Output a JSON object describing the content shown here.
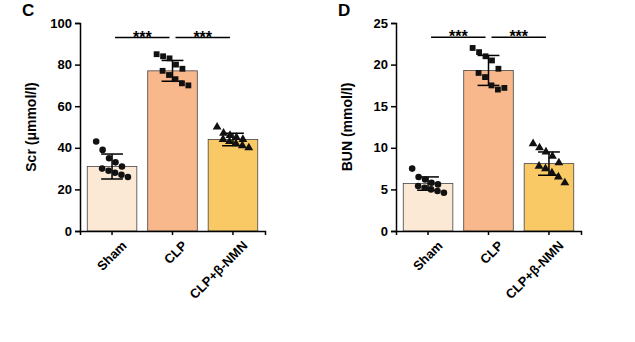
{
  "chart_data": [
    {
      "type": "bar",
      "title": "C",
      "y_label": "Scr (μmmol/l)",
      "categories": [
        "Sham",
        "CLP",
        "CLP+β-NMN"
      ],
      "values": [
        31,
        77,
        44
      ],
      "errors": [
        6,
        5,
        3
      ],
      "points": [
        [
          43,
          39,
          35,
          33,
          31,
          30,
          29,
          28,
          27,
          26
        ],
        [
          85,
          84,
          83,
          80,
          78,
          77,
          75,
          73,
          71,
          70
        ],
        [
          50,
          47,
          46,
          45,
          44,
          44,
          43,
          42,
          41,
          40
        ]
      ],
      "colors": [
        "#fbe9d6",
        "#f9b88c",
        "#f8c964"
      ],
      "marker": [
        "circle",
        "square",
        "triangle"
      ],
      "ylim": [
        0,
        100
      ],
      "yticks": [
        0,
        20,
        40,
        60,
        80,
        100
      ],
      "grid": false,
      "annotations": [
        {
          "text": "***",
          "from": 0,
          "to": 1,
          "y": 93
        },
        {
          "text": "***",
          "from": 1,
          "to": 2,
          "y": 93
        }
      ]
    },
    {
      "type": "bar",
      "title": "D",
      "y_label": "BUN (mmol/l)",
      "categories": [
        "Sham",
        "CLP",
        "CLP+β-NMN"
      ],
      "values": [
        5.7,
        19.3,
        8.1
      ],
      "errors": [
        0.8,
        1.8,
        1.4
      ],
      "points": [
        [
          7.5,
          6.5,
          6.2,
          5.8,
          5.6,
          5.4,
          5.2,
          5.0,
          4.8,
          4.6
        ],
        [
          22,
          21.5,
          21,
          20.5,
          19.5,
          19,
          18.5,
          17.5,
          17,
          17.2
        ],
        [
          10.5,
          10,
          9.5,
          9,
          8.2,
          7.8,
          7.5,
          7,
          6.5,
          5.8
        ]
      ],
      "colors": [
        "#fbe9d6",
        "#f9b88c",
        "#f8c964"
      ],
      "marker": [
        "circle",
        "square",
        "triangle"
      ],
      "ylim": [
        0,
        25
      ],
      "yticks": [
        0,
        5,
        10,
        15,
        20,
        25
      ],
      "grid": false,
      "annotations": [
        {
          "text": "***",
          "from": 0,
          "to": 1,
          "y": 23.3
        },
        {
          "text": "***",
          "from": 1,
          "to": 2,
          "y": 23.3
        }
      ]
    }
  ]
}
